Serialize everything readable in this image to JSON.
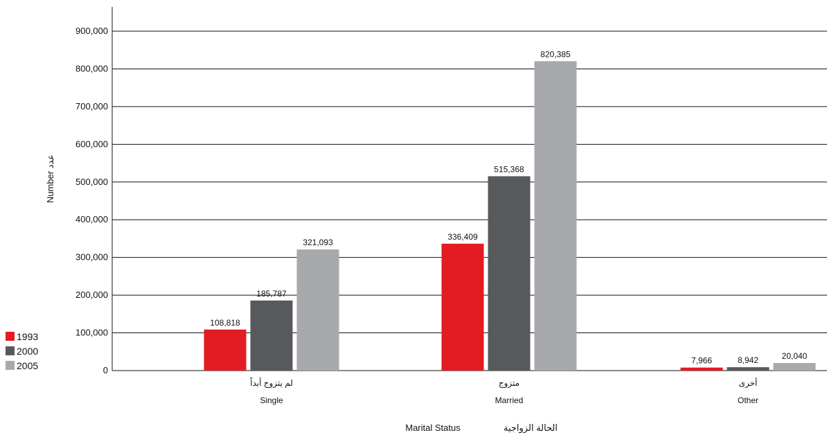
{
  "chart_data": {
    "type": "bar",
    "categories_ar": [
      "لم يتزوج أبداً",
      "متزوج",
      "أخرى"
    ],
    "categories": [
      "Single",
      "Married",
      "Other"
    ],
    "series": [
      {
        "name": "1993",
        "color": "#e31b23",
        "values": [
          108818,
          336409,
          7966
        ],
        "labels": [
          "108,818",
          "336,409",
          "7,966"
        ]
      },
      {
        "name": "2000",
        "color": "#58595b",
        "values": [
          185787,
          515368,
          8942
        ],
        "labels": [
          "185,787",
          "515,368",
          "8,942"
        ]
      },
      {
        "name": "2005",
        "color": "#a7a9ac",
        "values": [
          321093,
          820385,
          20040
        ],
        "labels": [
          "321,093",
          "820,385",
          "20,040"
        ]
      }
    ],
    "ylim": [
      0,
      900000
    ],
    "yticks": [
      "0",
      "100,000",
      "200,000",
      "300,000",
      "400,000",
      "500,000",
      "600,000",
      "700,000",
      "800,000",
      "900,000"
    ],
    "ylabel": "Number عدد",
    "xlabel_en": "Marital Status",
    "xlabel_ar": "الحالة الزواجية",
    "grid": true,
    "legend_position": "bottom-left"
  }
}
